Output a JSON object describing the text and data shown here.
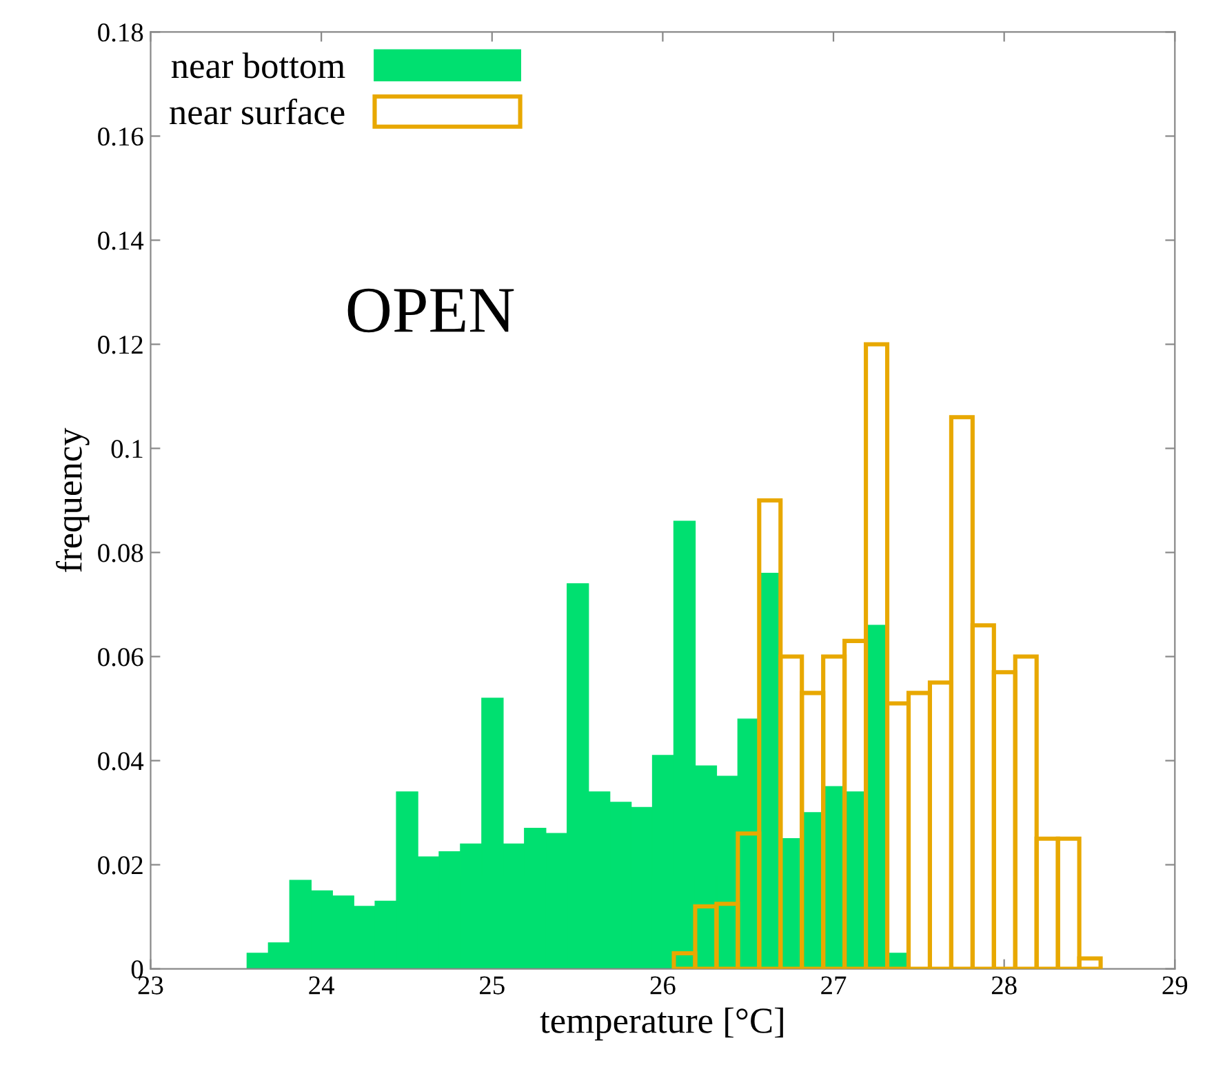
{
  "chart_data": {
    "type": "histogram",
    "xlabel": "temperature [°C]",
    "ylabel": "frequency",
    "annotations": [
      "OPEN"
    ],
    "bins": [
      23.565,
      23.69,
      23.815,
      23.94,
      24.065,
      24.19,
      24.315,
      24.44,
      24.565,
      24.69,
      24.815,
      24.94,
      25.065,
      25.19,
      25.315,
      25.44,
      25.565,
      25.69,
      25.815,
      25.94,
      26.065,
      26.19,
      26.315,
      26.44,
      26.565,
      26.69,
      26.815,
      26.94,
      27.065,
      27.19,
      27.315,
      27.44,
      27.565,
      27.69,
      27.815,
      27.94,
      28.065,
      28.19,
      28.315,
      28.44,
      28.565
    ],
    "series": [
      {
        "name": "near bottom",
        "color": "#00e070",
        "values": [
          0.003,
          0.005,
          0.017,
          0.015,
          0.014,
          0.012,
          0.013,
          0.034,
          0.0215,
          0.0225,
          0.024,
          0.052,
          0.024,
          0.027,
          0.026,
          0.074,
          0.034,
          0.032,
          0.031,
          0.041,
          0.086,
          0.039,
          0.037,
          0.048,
          0.076,
          0.025,
          0.03,
          0.035,
          0.034,
          0.066,
          0.003,
          null,
          null,
          null,
          null,
          null,
          null,
          null,
          null,
          null
        ]
      },
      {
        "name": "near surface",
        "color": "#e8a800",
        "values": [
          null,
          null,
          null,
          null,
          null,
          null,
          null,
          null,
          null,
          null,
          null,
          null,
          null,
          null,
          null,
          null,
          null,
          null,
          null,
          null,
          0.003,
          0.012,
          0.0125,
          0.026,
          0.09,
          0.06,
          0.053,
          0.06,
          0.063,
          0.12,
          0.051,
          0.053,
          0.055,
          0.106,
          0.066,
          0.057,
          0.06,
          0.025,
          0.025,
          0.002
        ]
      }
    ],
    "xlim": [
      23,
      29
    ],
    "xticks": [
      23,
      24,
      25,
      26,
      27,
      28,
      29
    ],
    "ylim": [
      0,
      0.18
    ],
    "yticks": [
      0,
      0.02,
      0.04,
      0.06,
      0.08,
      0.1,
      0.12,
      0.14,
      0.16,
      0.18
    ],
    "grid": false,
    "legend": "top left"
  }
}
